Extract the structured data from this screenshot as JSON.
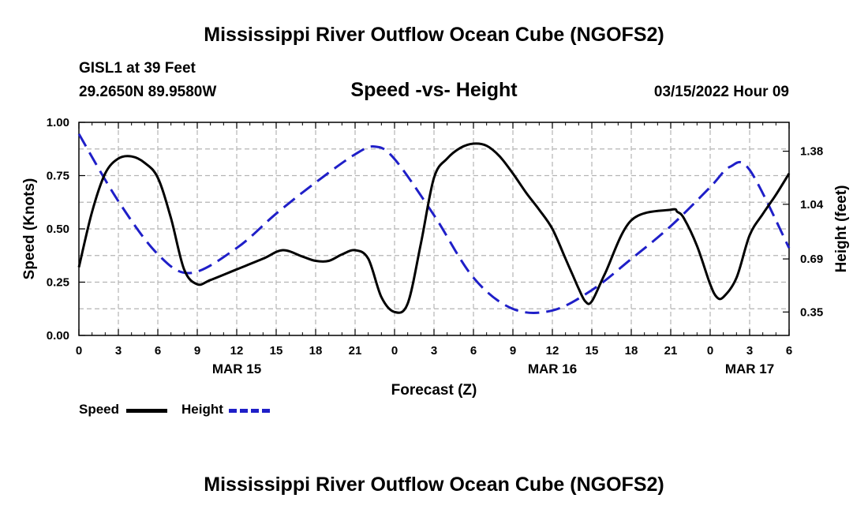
{
  "page": {
    "title": "Mississippi River Outflow Ocean Cube (NGOFS2)",
    "station": "GISL1 at 39 Feet",
    "location": "29.2650N  89.9580W",
    "subtitle": "Speed -vs- Height",
    "datetime": "03/15/2022 Hour 09",
    "footer_title": "Mississippi River Outflow Ocean Cube (NGOFS2)"
  },
  "colors": {
    "speed": "#000000",
    "height": "#1f1fc8",
    "grid": "#b4b4b4"
  },
  "legend": {
    "speed_label": "Speed",
    "height_label": "Height"
  },
  "chart_data": {
    "type": "line",
    "title": "Speed -vs- Height",
    "xlabel": "Forecast (Z)",
    "ylabel": "Speed (Knots)",
    "y2label": "Height (feet)",
    "x_unit": "hours since MAR 15 00Z",
    "xlim": [
      0,
      54
    ],
    "ylim": [
      0,
      1
    ],
    "y2lim": [
      0.2,
      1.565
    ],
    "x_ticks": [
      0,
      3,
      6,
      9,
      12,
      15,
      18,
      21,
      24,
      27,
      30,
      33,
      36,
      39,
      42,
      45,
      48,
      51,
      54
    ],
    "x_tick_labels": [
      "0",
      "3",
      "6",
      "9",
      "12",
      "15",
      "18",
      "21",
      "0",
      "3",
      "6",
      "9",
      "12",
      "15",
      "18",
      "21",
      "0",
      "3",
      "6"
    ],
    "date_labels": [
      {
        "x": 12,
        "label": "MAR 15"
      },
      {
        "x": 36,
        "label": "MAR 16"
      },
      {
        "x": 51,
        "label": "MAR 17"
      }
    ],
    "y_ticks": [
      0,
      0.25,
      0.5,
      0.75,
      1.0
    ],
    "y_tick_labels": [
      "0.00",
      "0.25",
      "0.50",
      "0.75",
      "1.00"
    ],
    "y2_ticks": [
      0.35,
      0.69,
      1.04,
      1.38
    ],
    "y2_tick_labels": [
      "0.35",
      "0.69",
      "1.04",
      "1.38"
    ],
    "grid": true,
    "series": [
      {
        "name": "Speed",
        "axis": "left",
        "style": "solid",
        "x": [
          0,
          1,
          2,
          3,
          4,
          5,
          6,
          7,
          8,
          9,
          10,
          12,
          14,
          15.5,
          17,
          18,
          19,
          20,
          21,
          22,
          23,
          24,
          25,
          26,
          27,
          28,
          29,
          30,
          31,
          32,
          33,
          34,
          35,
          36,
          37,
          37.5,
          38,
          38.5,
          39,
          40,
          42,
          45,
          45.5,
          46,
          47,
          48,
          48.5,
          49,
          50,
          51,
          52,
          53,
          54
        ],
        "values": [
          0.32,
          0.58,
          0.76,
          0.83,
          0.84,
          0.81,
          0.74,
          0.55,
          0.31,
          0.24,
          0.26,
          0.31,
          0.36,
          0.4,
          0.37,
          0.35,
          0.35,
          0.38,
          0.4,
          0.36,
          0.18,
          0.11,
          0.15,
          0.43,
          0.74,
          0.83,
          0.88,
          0.9,
          0.89,
          0.84,
          0.76,
          0.67,
          0.59,
          0.5,
          0.36,
          0.29,
          0.22,
          0.16,
          0.16,
          0.29,
          0.54,
          0.59,
          0.58,
          0.55,
          0.42,
          0.24,
          0.18,
          0.18,
          0.27,
          0.47,
          0.57,
          0.66,
          0.76
        ]
      },
      {
        "name": "Height",
        "axis": "right",
        "style": "dashed",
        "x": [
          0,
          3,
          6,
          8.5,
          12,
          15,
          18,
          21,
          22.5,
          24,
          27,
          30,
          33,
          36,
          39,
          42,
          45,
          48,
          49.5,
          51,
          54
        ],
        "values": [
          1.49,
          1.06,
          0.72,
          0.6,
          0.76,
          0.98,
          1.18,
          1.36,
          1.41,
          1.33,
          0.97,
          0.57,
          0.37,
          0.36,
          0.49,
          0.69,
          0.9,
          1.15,
          1.28,
          1.26,
          0.76
        ]
      }
    ]
  }
}
